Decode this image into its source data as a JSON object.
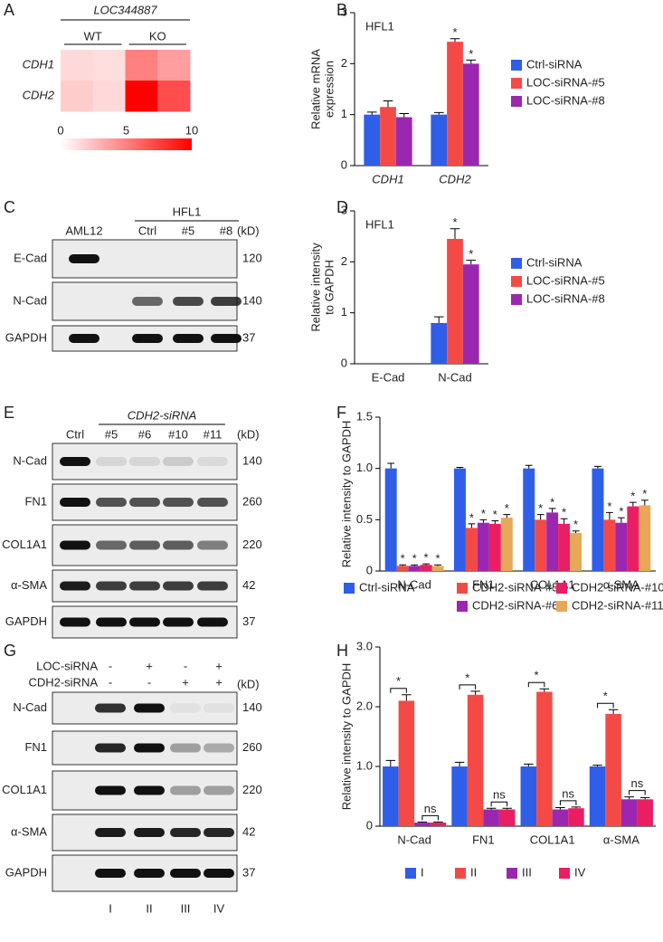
{
  "panel_labels": [
    "A",
    "B",
    "C",
    "D",
    "E",
    "F",
    "G",
    "H"
  ],
  "chart_data": [
    {
      "type": "heatmap",
      "label": "LOC344887",
      "groups": [
        "WT",
        "KO"
      ],
      "rows": [
        "CDH1",
        "CDH2"
      ],
      "values": [
        [
          1.5,
          1.3,
          5,
          3.8
        ],
        [
          2,
          1.5,
          10,
          7
        ]
      ],
      "color": "#ff0000",
      "zlim": [
        0,
        10
      ],
      "zticks": [
        0,
        5,
        10
      ]
    },
    {
      "type": "bar",
      "annotation": "HFL1",
      "ylabel": [
        "Relative mRNA",
        "expression"
      ],
      "categories": [
        "CDH1",
        "CDH2"
      ],
      "ylim": [
        0,
        3
      ],
      "yticks": [
        0,
        1,
        2,
        3
      ],
      "legend": "right",
      "series": [
        {
          "name": "Ctrl-siRNA",
          "color": "#2f5ee8",
          "values": [
            1.0,
            1.0
          ],
          "errors": [
            0.05,
            0.04
          ]
        },
        {
          "name": "LOC-siRNA-#5",
          "color": "#f44a46",
          "values": [
            1.15,
            2.43
          ],
          "errors": [
            0.12,
            0.06
          ],
          "stars": [
            null,
            "*"
          ]
        },
        {
          "name": "LOC-siRNA-#8",
          "color": "#9b27b0",
          "values": [
            0.95,
            2.0
          ],
          "errors": [
            0.07,
            0.07
          ],
          "stars": [
            null,
            "*"
          ]
        }
      ]
    },
    {
      "type": "bar",
      "annotation": "HFL1",
      "ylabel": [
        "Relative intensity",
        "to GAPDH"
      ],
      "categories": [
        "E-Cad",
        "N-Cad"
      ],
      "ylim": [
        0,
        3
      ],
      "yticks": [
        0,
        1,
        2,
        3
      ],
      "legend": "right",
      "series": [
        {
          "name": "Ctrl-siRNA",
          "color": "#2f5ee8",
          "values": [
            0,
            0.8
          ],
          "errors": [
            0,
            0.12
          ]
        },
        {
          "name": "LOC-siRNA-#5",
          "color": "#f44a46",
          "values": [
            0,
            2.45
          ],
          "errors": [
            0,
            0.2
          ],
          "stars": [
            null,
            "*"
          ]
        },
        {
          "name": "LOC-siRNA-#8",
          "color": "#9b27b0",
          "values": [
            0,
            1.95
          ],
          "errors": [
            0,
            0.08
          ],
          "stars": [
            null,
            "*"
          ]
        }
      ]
    },
    {
      "type": "bar",
      "ylabel": [
        "Relative intensity to GAPDH"
      ],
      "categories": [
        "N-Cad",
        "FN1",
        "COL1A1",
        "α-SMA"
      ],
      "ylim": [
        0,
        1.5
      ],
      "yticks": [
        0,
        0.5,
        {
          "value": 1,
          "label": "1.0"
        },
        1.5
      ],
      "legend": "bottom",
      "series": [
        {
          "name": "Ctrl-siRNA",
          "color": "#2f5ee8",
          "values": [
            1.0,
            1.0,
            1.0,
            1.0
          ],
          "errors": [
            0.05,
            0.01,
            0.03,
            0.02
          ]
        },
        {
          "name": "CDH2-siRNA-#5",
          "color": "#f44a46",
          "values": [
            0.05,
            0.42,
            0.5,
            0.5
          ],
          "errors": [
            0.01,
            0.04,
            0.05,
            0.07
          ],
          "stars": [
            "*",
            "*",
            "*",
            "*"
          ]
        },
        {
          "name": "CDH2-siRNA-#6",
          "color": "#9b27b0",
          "values": [
            0.05,
            0.47,
            0.57,
            0.47
          ],
          "errors": [
            0.01,
            0.03,
            0.04,
            0.05
          ],
          "stars": [
            "*",
            "*",
            "*",
            "*"
          ]
        },
        {
          "name": "CDH2-siRNA-#10",
          "color": "#e91e63",
          "values": [
            0.06,
            0.46,
            0.46,
            0.63
          ],
          "errors": [
            0.01,
            0.03,
            0.05,
            0.04
          ],
          "stars": [
            "*",
            "*",
            "*",
            "*"
          ]
        },
        {
          "name": "CDH2-siRNA-#11",
          "color": "#e8a85a",
          "values": [
            0.05,
            0.52,
            0.37,
            0.64
          ],
          "errors": [
            0.01,
            0.03,
            0.02,
            0.05
          ],
          "stars": [
            "*",
            "*",
            "*",
            "*"
          ]
        }
      ]
    },
    {
      "type": "bar",
      "ylabel": [
        "Relative intensity to GAPDH"
      ],
      "categories": [
        "N-Cad",
        "FN1",
        "COL1A1",
        "α-SMA"
      ],
      "ylim": [
        0,
        3
      ],
      "yticks": [
        0,
        {
          "value": 1,
          "label": "1.0"
        },
        {
          "value": 2,
          "label": "2.0"
        },
        {
          "value": 3,
          "label": "3.0"
        }
      ],
      "legend": "bottom",
      "brackets": [
        [
          "*",
          "ns"
        ],
        [
          "*",
          "ns"
        ],
        [
          "*",
          "ns"
        ],
        [
          "*",
          "ns"
        ]
      ],
      "series": [
        {
          "name": "I",
          "color": "#2f5ee8",
          "values": [
            1.0,
            1.0,
            1.0,
            1.0
          ],
          "errors": [
            0.1,
            0.07,
            0.04,
            0.02
          ]
        },
        {
          "name": "II",
          "color": "#f44a46",
          "values": [
            2.1,
            2.2,
            2.25,
            1.88
          ],
          "errors": [
            0.1,
            0.06,
            0.05,
            0.07
          ]
        },
        {
          "name": "III",
          "color": "#9b27b0",
          "values": [
            0.06,
            0.28,
            0.28,
            0.45
          ],
          "errors": [
            0.01,
            0.02,
            0.03,
            0.04
          ]
        },
        {
          "name": "IV",
          "color": "#e91e63",
          "values": [
            0.06,
            0.28,
            0.3,
            0.45
          ],
          "errors": [
            0.01,
            0.02,
            0.02,
            0.03
          ]
        }
      ]
    }
  ],
  "blots": [
    {
      "header": "HFL1",
      "lanes": [
        "AML12",
        "Ctrl",
        "#5",
        "#8"
      ],
      "kd_label": "(kD)",
      "rows": [
        {
          "name": "E-Cad",
          "kd": 120
        },
        {
          "name": "N-Cad",
          "kd": 140
        },
        {
          "name": "GAPDH",
          "kd": 37
        }
      ]
    },
    {
      "header": "CDH2-siRNA",
      "lanes": [
        "Ctrl",
        "#5",
        "#6",
        "#10",
        "#11"
      ],
      "kd_label": "(kD)",
      "rows": [
        {
          "name": "N-Cad",
          "kd": 140
        },
        {
          "name": "FN1",
          "kd": 260
        },
        {
          "name": "COL1A1",
          "kd": 220
        },
        {
          "name": "α-SMA",
          "kd": 42
        },
        {
          "name": "GAPDH",
          "kd": 37
        }
      ]
    },
    {
      "conditions": [
        {
          "name": "LOC-siRNA",
          "signs": [
            "-",
            "+",
            "-",
            "+"
          ]
        },
        {
          "name": "CDH2-siRNA",
          "signs": [
            "-",
            "-",
            "+",
            "+"
          ]
        }
      ],
      "lanes": [
        "I",
        "II",
        "III",
        "IV"
      ],
      "kd_label": "(kD)",
      "rows": [
        {
          "name": "N-Cad",
          "kd": 140
        },
        {
          "name": "FN1",
          "kd": 260
        },
        {
          "name": "COL1A1",
          "kd": 220
        },
        {
          "name": "α-SMA",
          "kd": 42
        },
        {
          "name": "GAPDH",
          "kd": 37
        }
      ]
    }
  ]
}
